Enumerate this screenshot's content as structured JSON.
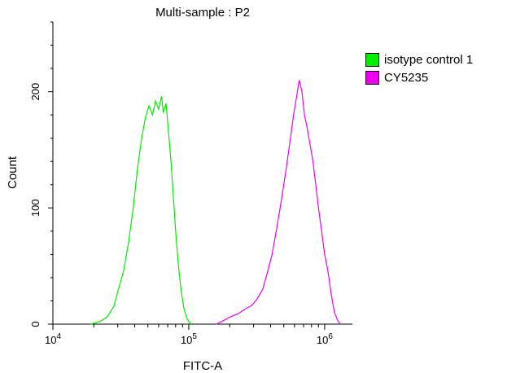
{
  "chart_data": {
    "type": "line",
    "title": "Multi-sample : P2",
    "xlabel": "FITC-A",
    "ylabel": "Count",
    "x_scale": "log",
    "xlim": [
      10000,
      1600000
    ],
    "ylim": [
      0,
      260
    ],
    "x_ticks": [
      {
        "value": 10000,
        "base": "10",
        "exp": "4"
      },
      {
        "value": 100000,
        "base": "10",
        "exp": "5"
      },
      {
        "value": 1000000,
        "base": "10",
        "exp": "6"
      }
    ],
    "y_ticks": [
      0,
      100,
      200
    ],
    "grid": false,
    "legend_position": "right-outside",
    "series": [
      {
        "name": "isotype control 1",
        "color": "#00ee00",
        "x": [
          19000,
          22000,
          25000,
          28000,
          30000,
          33000,
          36000,
          39000,
          42000,
          45000,
          48000,
          51000,
          54000,
          57000,
          60000,
          63000,
          65000,
          68000,
          71000,
          74000,
          77000,
          80000,
          84000,
          88000,
          92000,
          96000,
          100000,
          104000
        ],
        "y": [
          0,
          2,
          6,
          15,
          28,
          45,
          70,
          100,
          135,
          160,
          178,
          188,
          180,
          192,
          185,
          196,
          182,
          190,
          165,
          140,
          110,
          80,
          50,
          28,
          14,
          6,
          2,
          0
        ]
      },
      {
        "name": "CY5235",
        "color": "#ee00ee",
        "x": [
          160000,
          180000,
          200000,
          230000,
          260000,
          290000,
          320000,
          350000,
          380000,
          410000,
          440000,
          470000,
          500000,
          530000,
          560000,
          590000,
          620000,
          650000,
          680000,
          710000,
          740000,
          780000,
          820000,
          860000,
          900000,
          950000,
          1000000,
          1060000,
          1120000,
          1180000,
          1250000,
          1300000
        ],
        "y": [
          0,
          3,
          6,
          9,
          13,
          16,
          22,
          30,
          45,
          60,
          80,
          100,
          120,
          140,
          160,
          180,
          195,
          210,
          200,
          180,
          170,
          155,
          140,
          120,
          100,
          80,
          60,
          45,
          25,
          10,
          3,
          0
        ]
      }
    ]
  },
  "colors": {
    "axis": "#000000",
    "background": "#ffffff"
  }
}
